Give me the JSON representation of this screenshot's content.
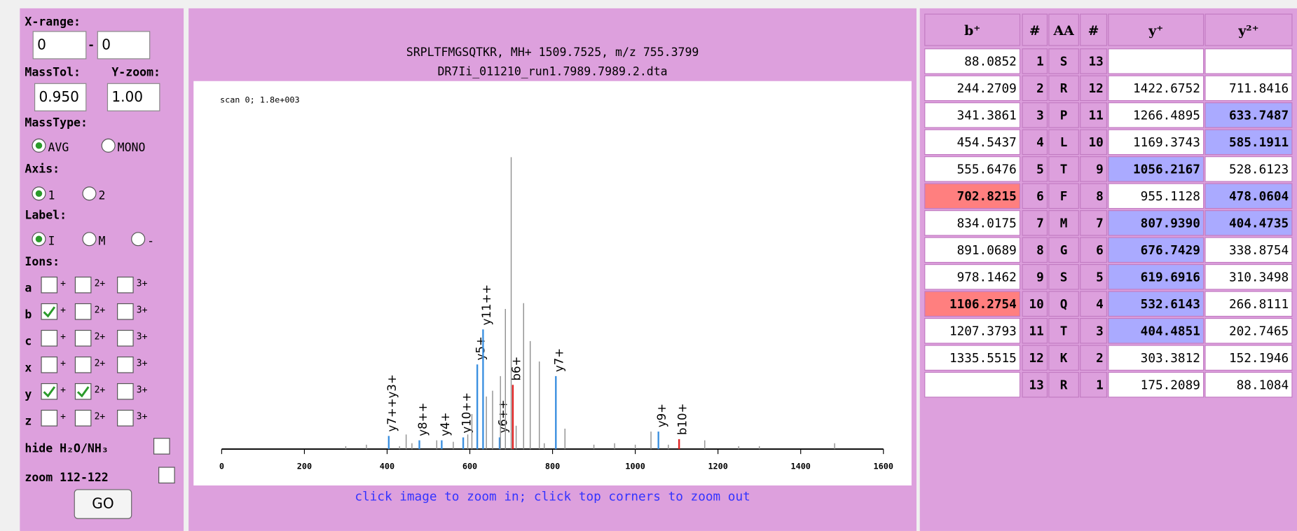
{
  "controls": {
    "x_range": {
      "label": "X-range:",
      "from": "0",
      "sep": "-",
      "to": "0"
    },
    "mass_tol": {
      "label": "MassTol:",
      "value": "0.950"
    },
    "y_zoom": {
      "label": "Y-zoom:",
      "value": "1.00"
    },
    "mass_type": {
      "label": "MassType:",
      "options": [
        "AVG",
        "MONO"
      ],
      "selected": 0
    },
    "axis": {
      "label": "Axis:",
      "options": [
        "1",
        "2"
      ],
      "selected": 0
    },
    "label": {
      "label": "Label:",
      "options": [
        "I",
        "M",
        "-"
      ],
      "selected": 0
    },
    "ions": {
      "label": "Ions:",
      "columns": [
        "+",
        "2+",
        "3+"
      ],
      "rows": [
        {
          "ion": "a",
          "checked": [
            false,
            false,
            false
          ]
        },
        {
          "ion": "b",
          "checked": [
            true,
            false,
            false
          ]
        },
        {
          "ion": "c",
          "checked": [
            false,
            false,
            false
          ]
        },
        {
          "ion": "x",
          "checked": [
            false,
            false,
            false
          ]
        },
        {
          "ion": "y",
          "checked": [
            true,
            true,
            false
          ]
        },
        {
          "ion": "z",
          "checked": [
            false,
            false,
            false
          ]
        }
      ]
    },
    "hide": {
      "label": "hide H₂O/NH₃",
      "checked": false
    },
    "zoom": {
      "label": "zoom 112-122",
      "checked": false
    },
    "go": "GO"
  },
  "chart_data": {
    "type": "stem",
    "title": "SRPLTFMGSQTKR, MH+ 1509.7525, m/z 755.3799",
    "subtitle": "DR7Ii_011210_run1.7989.7989.2.dta",
    "annotation": "scan 0; 1.8e+003",
    "footer": "click image to zoom in; click top corners to zoom out",
    "xlim": [
      0,
      1600
    ],
    "xticks": [
      0,
      200,
      400,
      600,
      800,
      1000,
      1200,
      1400,
      1600
    ],
    "ylim": [
      0,
      100
    ],
    "x": [
      404,
      478,
      532,
      584,
      618,
      632,
      672,
      704,
      808,
      1056,
      1106,
      300,
      350,
      430,
      446,
      460,
      520,
      560,
      595,
      605,
      640,
      655,
      674,
      686,
      700,
      712,
      730,
      746,
      768,
      780,
      830,
      900,
      950,
      1000,
      1038,
      1080,
      1168,
      1250,
      1300,
      1482
    ],
    "values": [
      4.5,
      3,
      3,
      4,
      29,
      41,
      4,
      22,
      25,
      6,
      3.4,
      1,
      1.5,
      1,
      5,
      2,
      3,
      2.5,
      5,
      12,
      18,
      20,
      25,
      48,
      100,
      8,
      50,
      37,
      30,
      2,
      7,
      1.5,
      2,
      1.5,
      6,
      1.5,
      3,
      1,
      1,
      2
    ],
    "colors": [
      "#3a8fe0",
      "#3a8fe0",
      "#3a8fe0",
      "#3a8fe0",
      "#3a8fe0",
      "#3a8fe0",
      "#3a8fe0",
      "#e02020",
      "#3a8fe0",
      "#3a8fe0",
      "#e02020",
      "#909090",
      "#909090",
      "#909090",
      "#909090",
      "#909090",
      "#909090",
      "#909090",
      "#909090",
      "#909090",
      "#909090",
      "#909090",
      "#909090",
      "#909090",
      "#909090",
      "#909090",
      "#909090",
      "#909090",
      "#909090",
      "#909090",
      "#909090",
      "#909090",
      "#909090",
      "#909090",
      "#909090",
      "#909090",
      "#909090",
      "#909090",
      "#909090",
      "#909090"
    ],
    "labels": [
      "y7++y3+",
      "y8++",
      "y4+",
      "y10++",
      "y5+",
      "y11++",
      "y6++",
      "b6+",
      "y7+",
      "y9+",
      "b10+",
      null,
      null,
      null,
      null,
      null,
      null,
      null,
      null,
      null,
      null,
      null,
      null,
      null,
      null,
      null,
      null,
      null,
      null,
      null,
      null,
      null,
      null,
      null,
      null,
      null,
      null,
      null,
      null,
      null
    ]
  },
  "table": {
    "header": [
      "b⁺",
      "#",
      "AA",
      "#",
      "y⁺",
      "y²⁺"
    ],
    "rows": [
      [
        "88.0852",
        "1",
        "S",
        "13",
        null,
        null
      ],
      [
        "244.2709",
        "2",
        "R",
        "12",
        "1422.6752",
        "711.8416"
      ],
      [
        "341.3861",
        "3",
        "P",
        "11",
        "1266.4895",
        "633.7487"
      ],
      [
        "454.5437",
        "4",
        "L",
        "10",
        "1169.3743",
        "585.1911"
      ],
      [
        "555.6476",
        "5",
        "T",
        "9",
        "1056.2167",
        "528.6123"
      ],
      [
        "702.8215",
        "6",
        "F",
        "8",
        "955.1128",
        "478.0604"
      ],
      [
        "834.0175",
        "7",
        "M",
        "7",
        "807.9390",
        "404.4735"
      ],
      [
        "891.0689",
        "8",
        "G",
        "6",
        "676.7429",
        "338.8754"
      ],
      [
        "978.1462",
        "9",
        "S",
        "5",
        "619.6916",
        "310.3498"
      ],
      [
        "1106.2754",
        "10",
        "Q",
        "4",
        "532.6143",
        "266.8111"
      ],
      [
        "1207.3793",
        "11",
        "T",
        "3",
        "404.4851",
        "202.7465"
      ],
      [
        "1335.5515",
        "12",
        "K",
        "2",
        "303.3812",
        "152.1946"
      ],
      [
        null,
        "13",
        "R",
        "1",
        "175.2089",
        "88.1084"
      ]
    ],
    "matched": {
      "b": [
        5,
        9
      ],
      "y": [
        4,
        6,
        7,
        8,
        9,
        10
      ],
      "y2": [
        2,
        3,
        5,
        6
      ]
    },
    "matched_colors": {
      "b": "#ff7f7f",
      "y": "#aaaaff",
      "y2": "#aaaaff"
    }
  }
}
